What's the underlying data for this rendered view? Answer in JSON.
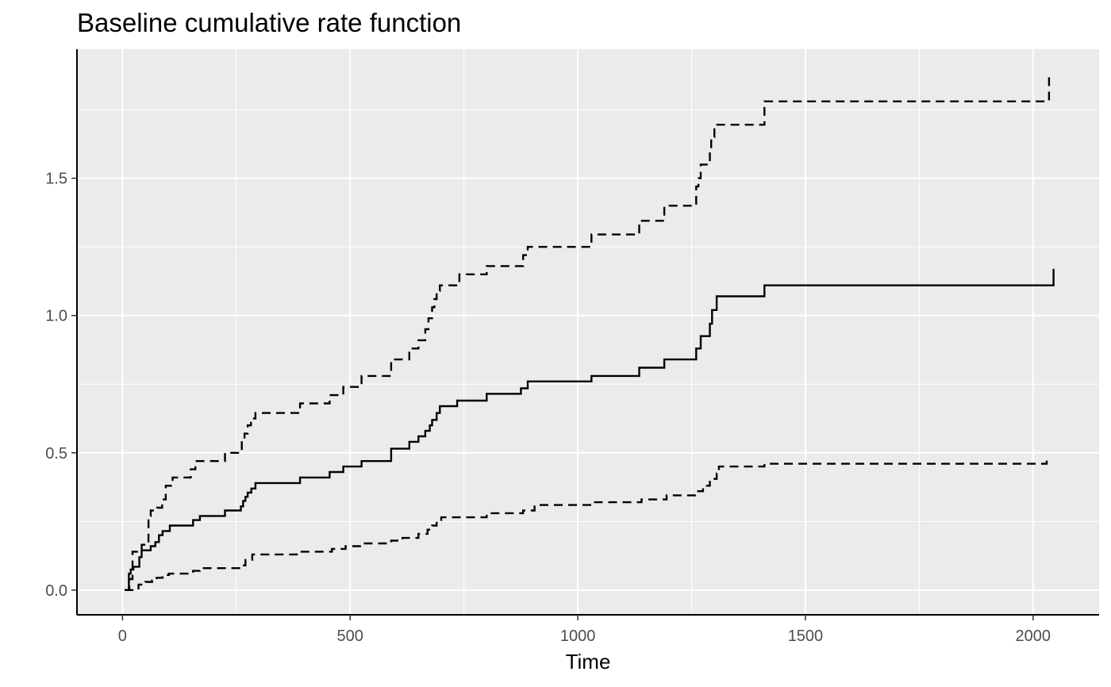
{
  "chart_data": {
    "type": "line",
    "title": "Baseline cumulative rate function",
    "xlabel": "Time",
    "ylabel": "",
    "xlim": [
      -100,
      2145
    ],
    "ylim": [
      -0.09,
      1.97
    ],
    "x_ticks": [
      0,
      500,
      1000,
      1500,
      2000
    ],
    "x_tick_labels": [
      "0",
      "500",
      "1000",
      "1500",
      "2000"
    ],
    "y_ticks": [
      0.0,
      0.5,
      1.0,
      1.5
    ],
    "y_tick_labels": [
      "0.0",
      "0.5",
      "1.0",
      "1.5"
    ],
    "grid": true,
    "legend": "none",
    "colors": {
      "panel": "#ebebeb",
      "grid": "#ffffff",
      "line": "#000000",
      "tick_text": "#4d4d4d"
    },
    "series": [
      {
        "style": "solid",
        "x": [
          5,
          14,
          18,
          24,
          37,
          42,
          62,
          72,
          80,
          88,
          104,
          155,
          170,
          225,
          260,
          265,
          270,
          275,
          283,
          292,
          390,
          455,
          485,
          525,
          590,
          630,
          650,
          665,
          675,
          680,
          690,
          697,
          735,
          800,
          875,
          890,
          1030,
          1135,
          1190,
          1260,
          1270,
          1290,
          1295,
          1305,
          1410,
          2045
        ],
        "y": [
          0.0,
          0.06,
          0.075,
          0.085,
          0.12,
          0.145,
          0.16,
          0.175,
          0.2,
          0.215,
          0.235,
          0.255,
          0.27,
          0.29,
          0.305,
          0.325,
          0.34,
          0.355,
          0.37,
          0.39,
          0.41,
          0.43,
          0.45,
          0.47,
          0.515,
          0.54,
          0.56,
          0.58,
          0.6,
          0.62,
          0.645,
          0.67,
          0.69,
          0.715,
          0.735,
          0.76,
          0.78,
          0.81,
          0.84,
          0.88,
          0.925,
          0.97,
          1.02,
          1.07,
          1.11,
          1.17
        ]
      },
      {
        "style": "dashed",
        "x": [
          5,
          15,
          22,
          42,
          57,
          62,
          76,
          87,
          95,
          110,
          150,
          160,
          180,
          225,
          262,
          268,
          275,
          282,
          292,
          390,
          455,
          485,
          525,
          590,
          630,
          650,
          665,
          672,
          680,
          685,
          690,
          697,
          740,
          800,
          880,
          890,
          1030,
          1135,
          1190,
          1260,
          1265,
          1270,
          1290,
          1293,
          1300,
          1410,
          2035
        ],
        "y": [
          0.0,
          0.04,
          0.14,
          0.165,
          0.27,
          0.29,
          0.3,
          0.33,
          0.38,
          0.41,
          0.44,
          0.47,
          0.47,
          0.5,
          0.55,
          0.57,
          0.6,
          0.625,
          0.645,
          0.68,
          0.71,
          0.74,
          0.78,
          0.84,
          0.88,
          0.91,
          0.95,
          0.99,
          1.03,
          1.06,
          1.09,
          1.11,
          1.15,
          1.18,
          1.22,
          1.25,
          1.295,
          1.345,
          1.4,
          1.47,
          1.5,
          1.55,
          1.6,
          1.65,
          1.695,
          1.78,
          1.875
        ]
      },
      {
        "style": "dashed",
        "x": [
          5,
          35,
          50,
          65,
          75,
          88,
          102,
          155,
          170,
          260,
          270,
          285,
          390,
          460,
          490,
          525,
          590,
          615,
          650,
          670,
          680,
          690,
          700,
          800,
          880,
          905,
          1030,
          1140,
          1195,
          1260,
          1275,
          1290,
          1305,
          1310,
          1410,
          2030
        ],
        "y": [
          0.0,
          0.02,
          0.03,
          0.035,
          0.045,
          0.055,
          0.06,
          0.07,
          0.08,
          0.09,
          0.11,
          0.13,
          0.14,
          0.15,
          0.16,
          0.17,
          0.18,
          0.19,
          0.205,
          0.22,
          0.235,
          0.25,
          0.265,
          0.28,
          0.29,
          0.31,
          0.32,
          0.33,
          0.345,
          0.36,
          0.38,
          0.405,
          0.425,
          0.45,
          0.46,
          0.475
        ]
      }
    ]
  }
}
